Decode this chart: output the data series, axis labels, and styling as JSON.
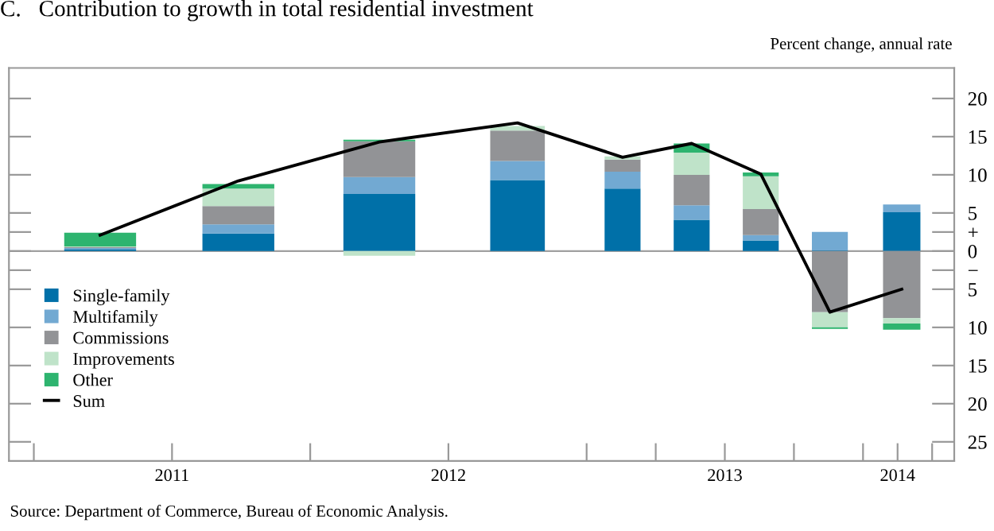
{
  "chart_data": {
    "type": "bar",
    "stacked": true,
    "title": "C.   Contribution to growth in total residential investment",
    "ylabel": "Percent change, annual rate",
    "x": [
      2011.24,
      2011.74,
      2012.25,
      2012.75,
      2013.13,
      2013.38,
      2013.63,
      2013.88,
      2014.14
    ],
    "series": [
      {
        "name": "Single-family",
        "color": "#0070a8",
        "values": [
          0.2,
          2.3,
          7.5,
          9.3,
          8.2,
          4.1,
          1.4,
          0.1,
          5.1
        ]
      },
      {
        "name": "Multifamily",
        "color": "#72a9d2",
        "values": [
          0.2,
          1.2,
          2.2,
          2.5,
          2.2,
          1.9,
          0.7,
          2.4,
          1.0
        ]
      },
      {
        "name": "Commissions",
        "color": "#929396",
        "values": [
          0.1,
          2.4,
          4.7,
          4.0,
          1.6,
          4.0,
          3.4,
          -8.0,
          -8.8
        ]
      },
      {
        "name": "Improvements",
        "color": "#bfe3c9",
        "values": [
          0.1,
          2.3,
          -0.6,
          0.6,
          0.4,
          2.9,
          4.3,
          -2.0,
          -0.7
        ]
      },
      {
        "name": "Other",
        "color": "#2eb46f",
        "values": [
          1.8,
          0.6,
          0.2,
          null,
          null,
          1.2,
          0.5,
          -0.2,
          -0.8
        ]
      },
      {
        "name": "Sum",
        "type": "line",
        "color": "#000000",
        "values": [
          2.1,
          9.2,
          14.3,
          16.8,
          12.3,
          14.1,
          10.1,
          -8.0,
          -5.0
        ]
      }
    ],
    "xlim": [
      2010.91,
      2014.33
    ],
    "xticks": [
      {
        "value": 2011,
        "label": null
      },
      {
        "value": 2011.5,
        "label": "2011"
      },
      {
        "value": 2012,
        "label": null
      },
      {
        "value": 2012.5,
        "label": "2012"
      },
      {
        "value": 2013,
        "label": null
      },
      {
        "value": 2013.25,
        "label": null
      },
      {
        "value": 2013.5,
        "label": "2013"
      },
      {
        "value": 2013.75,
        "label": null
      },
      {
        "value": 2014,
        "label": null
      },
      {
        "value": 2014.125,
        "label": "2014"
      },
      {
        "value": 2014.25,
        "label": null
      }
    ],
    "ylim": [
      -27.5,
      24
    ],
    "yticks": [
      {
        "value": -25,
        "label": "25"
      },
      {
        "value": -20,
        "label": "20"
      },
      {
        "value": -15,
        "label": "15"
      },
      {
        "value": -10,
        "label": "10"
      },
      {
        "value": -5,
        "label": "5"
      },
      {
        "value": -2.5,
        "label": "−"
      },
      0,
      {
        "value": 2.5,
        "label": "+"
      },
      5,
      10,
      15,
      20
    ],
    "ref_lines": [
      {
        "axis": "y",
        "value": 0,
        "color": "#a0a0a0"
      }
    ],
    "legend": "bottom left",
    "grid": false,
    "marker": "none",
    "line_style": "solid",
    "annotations": [
      "Source: Department of Commerce, Bureau of Economic Analysis."
    ]
  }
}
